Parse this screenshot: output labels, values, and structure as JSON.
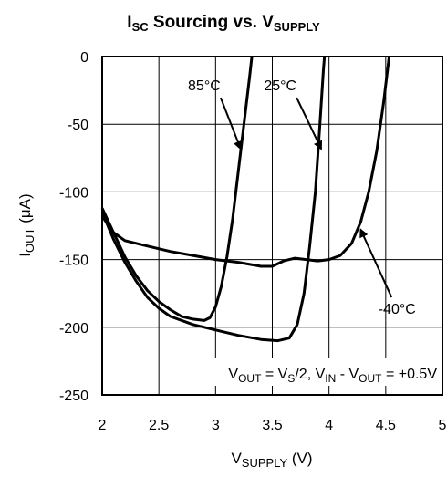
{
  "chart_data": {
    "type": "line",
    "title": {
      "main": "I",
      "main_sub": "SC",
      "rest": " Sourcing vs. V",
      "rest_sub": "SUPPLY"
    },
    "xlabel": {
      "main": "V",
      "sub": "SUPPLY",
      "unit": " (V)"
    },
    "ylabel": {
      "main": "I",
      "sub": "OUT",
      "unit": " (μA)"
    },
    "xlim": [
      2,
      5
    ],
    "ylim": [
      -250,
      0
    ],
    "xticks": [
      2,
      2.5,
      3,
      3.5,
      4,
      4.5,
      5
    ],
    "xtick_labels": [
      "2",
      "2.5",
      "3",
      "3.5",
      "4",
      "4.5",
      "5"
    ],
    "yticks": [
      0,
      -50,
      -100,
      -150,
      -200,
      -250
    ],
    "ytick_labels": [
      "0",
      "-50",
      "-100",
      "-150",
      "-200",
      "-250"
    ],
    "grid": true,
    "condition": {
      "parts": [
        {
          "t": "V"
        },
        {
          "t": "OUT",
          "sub": true
        },
        {
          "t": " = V"
        },
        {
          "t": "S",
          "sub": true
        },
        {
          "t": "/2, V"
        },
        {
          "t": "IN",
          "sub": true
        },
        {
          "t": " - V"
        },
        {
          "t": "OUT",
          "sub": true
        },
        {
          "t": " = +0.5V"
        }
      ]
    },
    "series": [
      {
        "name": "85°C",
        "points": [
          [
            2.0,
            -112
          ],
          [
            2.1,
            -130
          ],
          [
            2.2,
            -148
          ],
          [
            2.3,
            -162
          ],
          [
            2.4,
            -173
          ],
          [
            2.5,
            -181
          ],
          [
            2.6,
            -187
          ],
          [
            2.7,
            -192
          ],
          [
            2.8,
            -194
          ],
          [
            2.9,
            -195
          ],
          [
            2.95,
            -193
          ],
          [
            3.0,
            -185
          ],
          [
            3.05,
            -170
          ],
          [
            3.1,
            -148
          ],
          [
            3.15,
            -120
          ],
          [
            3.2,
            -85
          ],
          [
            3.25,
            -50
          ],
          [
            3.3,
            -15
          ],
          [
            3.32,
            0
          ]
        ],
        "label_pos": [
          2.9,
          -25
        ],
        "arrow_to": [
          3.22,
          -68
        ]
      },
      {
        "name": "25°C",
        "points": [
          [
            2.0,
            -115
          ],
          [
            2.1,
            -135
          ],
          [
            2.2,
            -152
          ],
          [
            2.3,
            -166
          ],
          [
            2.4,
            -178
          ],
          [
            2.5,
            -186
          ],
          [
            2.6,
            -192
          ],
          [
            2.8,
            -198
          ],
          [
            3.0,
            -202
          ],
          [
            3.2,
            -206
          ],
          [
            3.4,
            -209
          ],
          [
            3.55,
            -210
          ],
          [
            3.65,
            -208
          ],
          [
            3.72,
            -198
          ],
          [
            3.78,
            -175
          ],
          [
            3.83,
            -140
          ],
          [
            3.88,
            -100
          ],
          [
            3.92,
            -50
          ],
          [
            3.95,
            -10
          ],
          [
            3.96,
            0
          ]
        ],
        "label_pos": [
          3.57,
          -25
        ],
        "arrow_to": [
          3.93,
          -68
        ]
      },
      {
        "name": "-40°C",
        "points": [
          [
            2.0,
            -118
          ],
          [
            2.1,
            -130
          ],
          [
            2.2,
            -136
          ],
          [
            2.4,
            -140
          ],
          [
            2.6,
            -144
          ],
          [
            2.8,
            -147
          ],
          [
            3.0,
            -150
          ],
          [
            3.2,
            -152
          ],
          [
            3.4,
            -155
          ],
          [
            3.5,
            -155
          ],
          [
            3.6,
            -151
          ],
          [
            3.7,
            -149
          ],
          [
            3.8,
            -150
          ],
          [
            3.9,
            -151
          ],
          [
            4.0,
            -150
          ],
          [
            4.1,
            -147
          ],
          [
            4.2,
            -138
          ],
          [
            4.28,
            -122
          ],
          [
            4.35,
            -100
          ],
          [
            4.42,
            -70
          ],
          [
            4.48,
            -35
          ],
          [
            4.53,
            0
          ]
        ],
        "label_pos": [
          4.6,
          -190
        ],
        "arrow_to": [
          4.28,
          -128
        ]
      }
    ]
  }
}
